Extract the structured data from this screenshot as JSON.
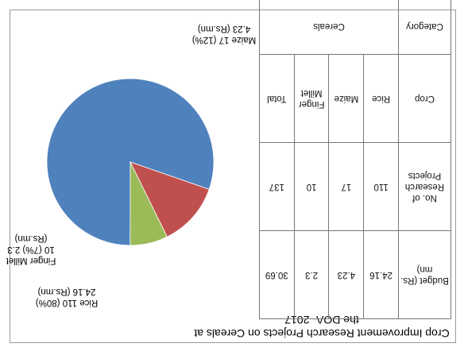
{
  "chart_data": {
    "type": "pie",
    "title": "Crop Improvement Research Projects on Cereals at the DOA- 2017",
    "slices": [
      {
        "label": "Rice",
        "value": 110,
        "percent": "80%",
        "budget": "24.16 (Rs.mn)",
        "color": "#4F81BD"
      },
      {
        "label": "Maize",
        "value": 17,
        "percent": "12%",
        "budget": "4.23 (Rs.mn)",
        "color": "#C0504D"
      },
      {
        "label": "Finger Millet",
        "value": 10,
        "percent": "7%",
        "budget": "2.3 (Rs.mn)",
        "color": "#9BBB59"
      }
    ],
    "slice_labels": [
      {
        "lines": [
          "Rice 110 (80%)",
          "24.16 (Rs.mn)"
        ]
      },
      {
        "lines": [
          "Maize 17 (12%)",
          "4.23 (Rs.mn)"
        ]
      },
      {
        "lines": [
          "Finger Millet",
          "10 (7%)  2.3",
          "(Rs.mn)"
        ]
      }
    ]
  },
  "table": {
    "col_headers": [
      "Crop",
      "No. of Research Projects",
      "Budget (Rs. mn)"
    ],
    "category_header": "Category",
    "category_value": "Cereals",
    "rows": [
      {
        "crop": "Rice",
        "projects": "110",
        "budget": "24.16"
      },
      {
        "crop": "Maize",
        "projects": "17",
        "budget": "4.23"
      },
      {
        "crop": "Finger Millet",
        "projects": "10",
        "budget": "2.3"
      },
      {
        "crop": "Total",
        "projects": "137",
        "budget": "30.69"
      }
    ]
  }
}
